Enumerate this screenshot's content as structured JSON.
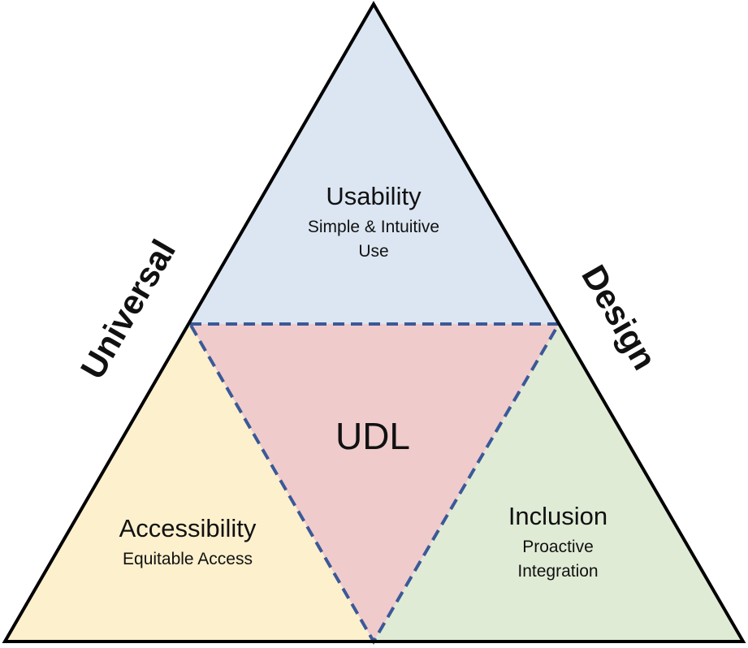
{
  "diagram": {
    "top": {
      "title": "Usability",
      "subtitle_line1": "Simple & Intuitive",
      "subtitle_line2": "Use",
      "fill": "#dce6f2"
    },
    "left": {
      "title": "Accessibility",
      "subtitle_line1": "Equitable Access",
      "fill": "#fdf0cd"
    },
    "right": {
      "title": "Inclusion",
      "subtitle_line1": "Proactive",
      "subtitle_line2": "Integration",
      "fill": "#e0ebd6"
    },
    "center": {
      "title": "UDL",
      "fill": "#f0cbcb",
      "text_color": "#3a0a0a"
    },
    "left_side_label": "Universal",
    "right_side_label": "Design",
    "outline_color": "#000000",
    "dash_color": "#3b5998"
  }
}
